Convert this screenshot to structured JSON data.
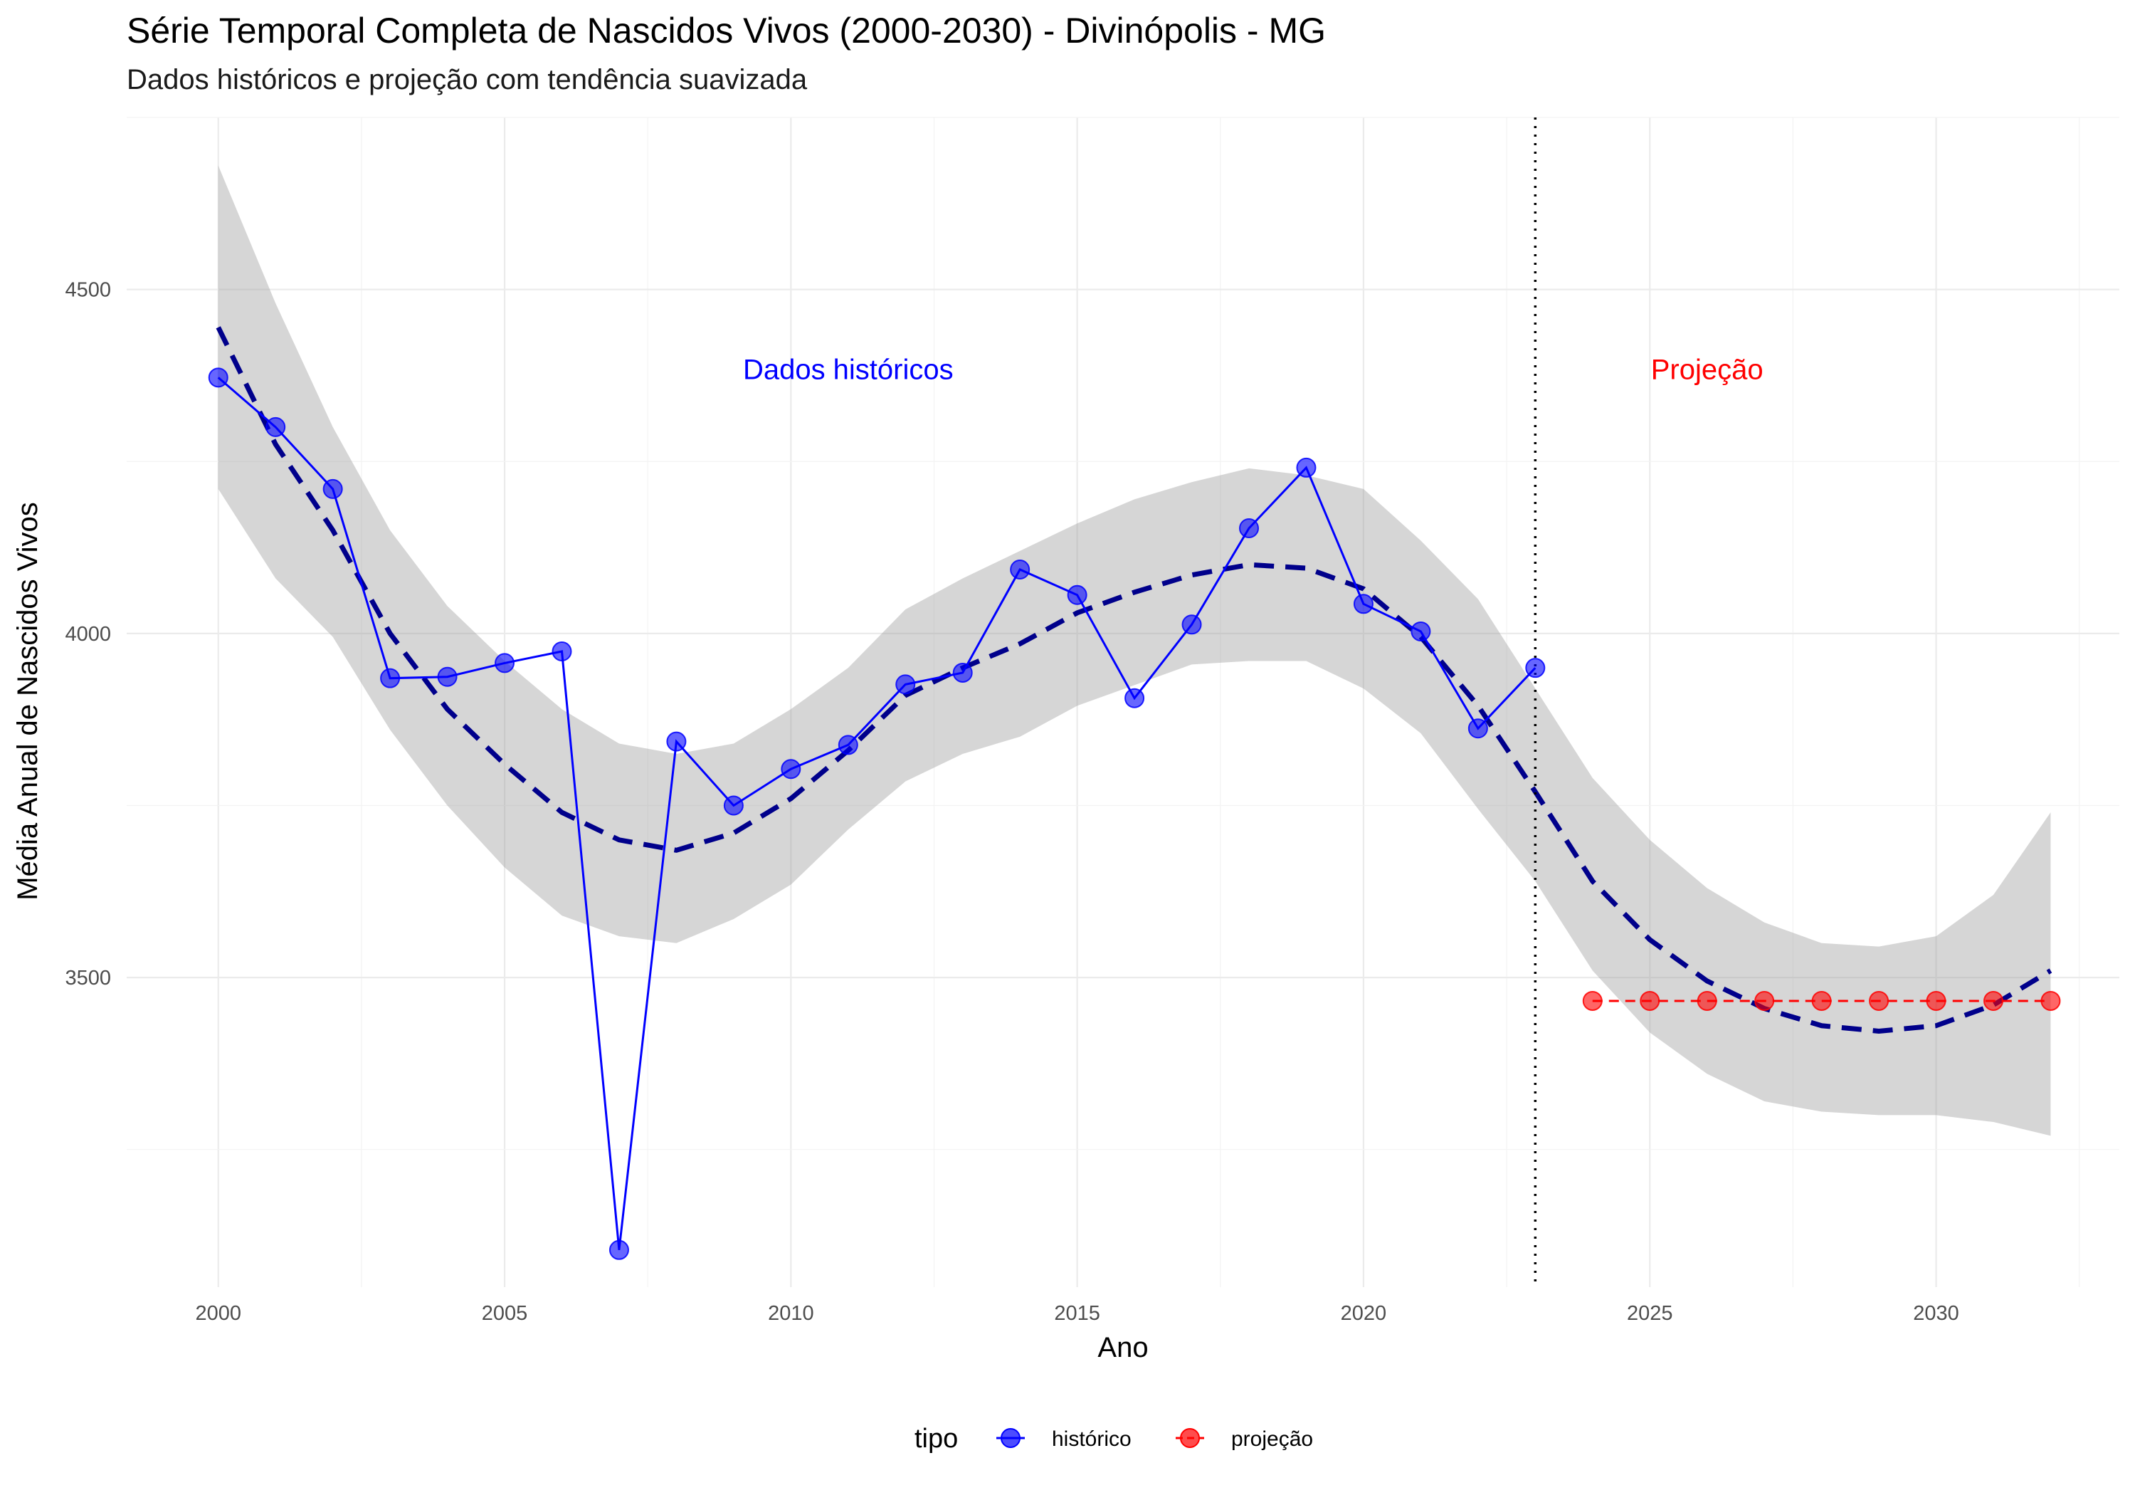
{
  "chart_data": {
    "type": "line",
    "title": "Série Temporal Completa de Nascidos Vivos (2000-2030) -  Divinópolis - MG",
    "subtitle": "Dados históricos e projeção com tendência suavizada",
    "xlabel": "Ano",
    "ylabel": "Média Anual de Nascidos Vivos",
    "xlim": [
      1998.4,
      2033.2
    ],
    "ylim": [
      3050,
      4750
    ],
    "x_ticks": [
      2000,
      2005,
      2010,
      2015,
      2020,
      2025,
      2030
    ],
    "y_ticks": [
      3500,
      4000,
      4500
    ],
    "grid": true,
    "legend": {
      "title": "tipo",
      "position": "bottom"
    },
    "cutoff_x": 2023,
    "annotations": [
      {
        "text": "Dados históricos",
        "x": 2011,
        "y": 4370,
        "color": "#0000ff"
      },
      {
        "text": "Projeção",
        "x": 2026,
        "y": 4370,
        "color": "#ff0000"
      }
    ],
    "series": [
      {
        "name": "histórico",
        "color": "#0000ff",
        "x": [
          2000,
          2001,
          2002,
          2003,
          2004,
          2005,
          2006,
          2007,
          2008,
          2009,
          2010,
          2011,
          2012,
          2013,
          2014,
          2015,
          2016,
          2017,
          2018,
          2019,
          2020,
          2021,
          2022,
          2023
        ],
        "values": [
          4372,
          4300,
          4210,
          3935,
          3937,
          3957,
          3974,
          3104,
          3843,
          3750,
          3803,
          3838,
          3926,
          3943,
          4093,
          4056,
          3906,
          4013,
          4153,
          4241,
          4043,
          4003,
          3862,
          3950
        ]
      },
      {
        "name": "projeção",
        "color": "#ff0000",
        "x": [
          2024,
          2025,
          2026,
          2027,
          2028,
          2029,
          2030,
          2031,
          2032
        ],
        "values": [
          3466,
          3466,
          3466,
          3466,
          3466,
          3466,
          3466,
          3466,
          3466
        ]
      }
    ],
    "smooth_trend": {
      "color": "#00008b",
      "x": [
        2000,
        2001,
        2002,
        2003,
        2004,
        2005,
        2006,
        2007,
        2008,
        2009,
        2010,
        2011,
        2012,
        2013,
        2014,
        2015,
        2016,
        2017,
        2018,
        2019,
        2020,
        2021,
        2022,
        2023,
        2024,
        2025,
        2026,
        2027,
        2028,
        2029,
        2030,
        2031,
        2032
      ],
      "values": [
        4445,
        4275,
        4150,
        4000,
        3890,
        3810,
        3740,
        3700,
        3685,
        3710,
        3760,
        3830,
        3910,
        3950,
        3985,
        4030,
        4060,
        4085,
        4100,
        4095,
        4065,
        3995,
        3895,
        3770,
        3640,
        3555,
        3495,
        3455,
        3430,
        3422,
        3430,
        3460,
        3510
      ],
      "ci_upper": [
        4680,
        4480,
        4300,
        4150,
        4040,
        3960,
        3890,
        3840,
        3825,
        3840,
        3890,
        3950,
        4035,
        4080,
        4120,
        4160,
        4195,
        4220,
        4240,
        4230,
        4210,
        4135,
        4050,
        3920,
        3790,
        3700,
        3630,
        3580,
        3550,
        3545,
        3560,
        3620,
        3740
      ],
      "ci_lower": [
        4210,
        4080,
        3995,
        3860,
        3750,
        3660,
        3590,
        3560,
        3550,
        3585,
        3635,
        3715,
        3785,
        3825,
        3850,
        3895,
        3925,
        3955,
        3960,
        3960,
        3920,
        3855,
        3745,
        3640,
        3510,
        3420,
        3360,
        3320,
        3305,
        3300,
        3300,
        3290,
        3270
      ]
    }
  }
}
